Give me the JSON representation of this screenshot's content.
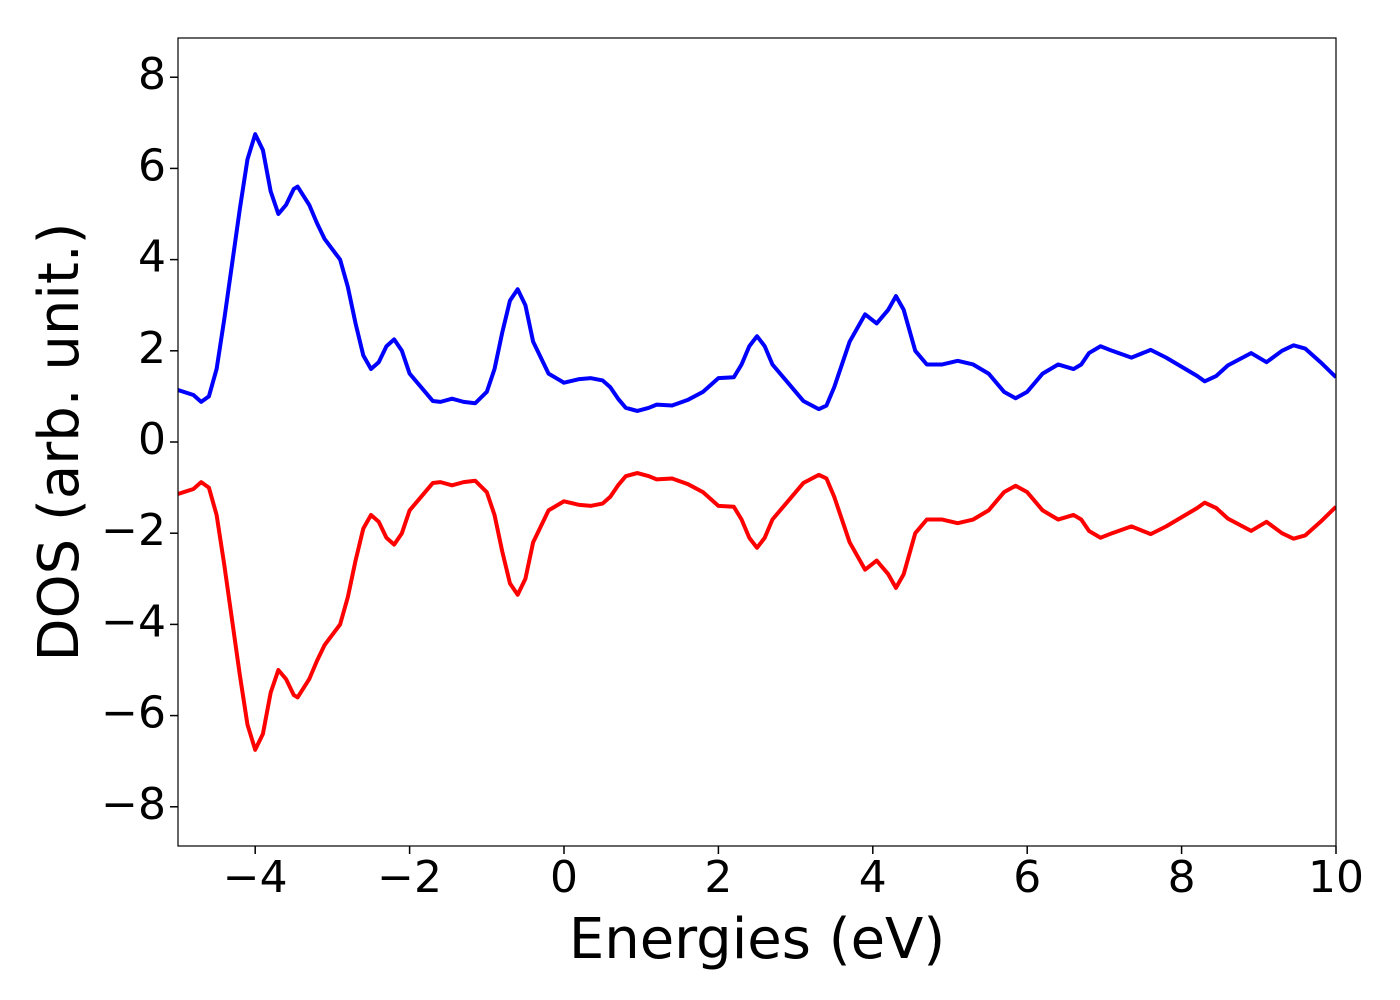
{
  "chart_data": {
    "type": "line",
    "x_label": "Energies (eV)",
    "y_label": "DOS (arb. unit.)",
    "x": [
      -5,
      -4.8,
      -4.7,
      -4.6,
      -4.5,
      -4.4,
      -4.3,
      -4.2,
      -4.1,
      -4.0,
      -3.9,
      -3.8,
      -3.7,
      -3.6,
      -3.5,
      -3.45,
      -3.3,
      -3.2,
      -3.1,
      -2.9,
      -2.8,
      -2.7,
      -2.6,
      -2.5,
      -2.4,
      -2.3,
      -2.2,
      -2.1,
      -2.0,
      -1.8,
      -1.7,
      -1.6,
      -1.45,
      -1.3,
      -1.15,
      -1.0,
      -0.9,
      -0.8,
      -0.7,
      -0.6,
      -0.5,
      -0.4,
      -0.2,
      0,
      0.2,
      0.35,
      0.5,
      0.6,
      0.7,
      0.8,
      0.95,
      1.1,
      1.2,
      1.4,
      1.6,
      1.8,
      2.0,
      2.2,
      2.3,
      2.4,
      2.5,
      2.6,
      2.7,
      2.9,
      3.1,
      3.3,
      3.4,
      3.5,
      3.7,
      3.9,
      4.05,
      4.2,
      4.3,
      4.4,
      4.55,
      4.7,
      4.9,
      5.1,
      5.3,
      5.5,
      5.7,
      5.85,
      6.0,
      6.2,
      6.4,
      6.6,
      6.7,
      6.8,
      6.95,
      7.1,
      7.35,
      7.6,
      7.8,
      8.0,
      8.2,
      8.3,
      8.45,
      8.6,
      8.9,
      9.1,
      9.3,
      9.45,
      9.6,
      9.8,
      10
    ],
    "series": [
      {
        "color": "#0000ff",
        "values": [
          1.14,
          1.03,
          0.88,
          1.0,
          1.6,
          2.7,
          3.9,
          5.1,
          6.2,
          6.75,
          6.4,
          5.5,
          5.0,
          5.2,
          5.55,
          5.6,
          5.2,
          4.8,
          4.45,
          4.0,
          3.4,
          2.6,
          1.9,
          1.6,
          1.75,
          2.1,
          2.25,
          2.0,
          1.5,
          1.1,
          0.9,
          0.88,
          0.95,
          0.88,
          0.85,
          1.1,
          1.6,
          2.4,
          3.1,
          3.35,
          3.0,
          2.2,
          1.5,
          1.3,
          1.38,
          1.4,
          1.35,
          1.2,
          0.95,
          0.75,
          0.68,
          0.75,
          0.82,
          0.8,
          0.92,
          1.1,
          1.4,
          1.42,
          1.7,
          2.1,
          2.32,
          2.1,
          1.7,
          1.3,
          0.9,
          0.72,
          0.8,
          1.2,
          2.2,
          2.8,
          2.6,
          2.9,
          3.2,
          2.9,
          2.0,
          1.7,
          1.7,
          1.78,
          1.7,
          1.5,
          1.1,
          0.96,
          1.1,
          1.5,
          1.7,
          1.6,
          1.7,
          1.95,
          2.1,
          2.0,
          1.85,
          2.02,
          1.85,
          1.65,
          1.45,
          1.33,
          1.45,
          1.68,
          1.95,
          1.75,
          2.0,
          2.12,
          2.05,
          1.75,
          1.42
        ]
      },
      {
        "color": "#ff0000",
        "values": [
          -1.14,
          -1.03,
          -0.88,
          -1.0,
          -1.6,
          -2.7,
          -3.9,
          -5.1,
          -6.2,
          -6.75,
          -6.4,
          -5.5,
          -5.0,
          -5.2,
          -5.55,
          -5.6,
          -5.2,
          -4.8,
          -4.45,
          -4.0,
          -3.4,
          -2.6,
          -1.9,
          -1.6,
          -1.75,
          -2.1,
          -2.25,
          -2.0,
          -1.5,
          -1.1,
          -0.9,
          -0.88,
          -0.95,
          -0.88,
          -0.85,
          -1.1,
          -1.6,
          -2.4,
          -3.1,
          -3.35,
          -3.0,
          -2.2,
          -1.5,
          -1.3,
          -1.38,
          -1.4,
          -1.35,
          -1.2,
          -0.95,
          -0.75,
          -0.68,
          -0.75,
          -0.82,
          -0.8,
          -0.92,
          -1.1,
          -1.4,
          -1.42,
          -1.7,
          -2.1,
          -2.32,
          -2.1,
          -1.7,
          -1.3,
          -0.9,
          -0.72,
          -0.8,
          -1.2,
          -2.2,
          -2.8,
          -2.6,
          -2.9,
          -3.2,
          -2.9,
          -2.0,
          -1.7,
          -1.7,
          -1.78,
          -1.7,
          -1.5,
          -1.1,
          -0.96,
          -1.1,
          -1.5,
          -1.7,
          -1.6,
          -1.7,
          -1.95,
          -2.1,
          -2.0,
          -1.85,
          -2.02,
          -1.85,
          -1.65,
          -1.45,
          -1.33,
          -1.45,
          -1.68,
          -1.95,
          -1.75,
          -2.0,
          -2.12,
          -2.05,
          -1.75,
          -1.42
        ]
      }
    ],
    "xlim": [
      -5,
      10
    ],
    "xticks": [
      {
        "value": -4,
        "label": "−4"
      },
      {
        "value": -2,
        "label": "−2"
      },
      0,
      2,
      4,
      6,
      8,
      10
    ],
    "ylim": [
      -8.86,
      8.86
    ],
    "yticks": [
      {
        "value": -8,
        "label": "−8"
      },
      {
        "value": -6,
        "label": "−6"
      },
      {
        "value": -4,
        "label": "−4"
      },
      {
        "value": -2,
        "label": "−2"
      },
      0,
      2,
      4,
      6,
      8
    ],
    "grid": false
  }
}
